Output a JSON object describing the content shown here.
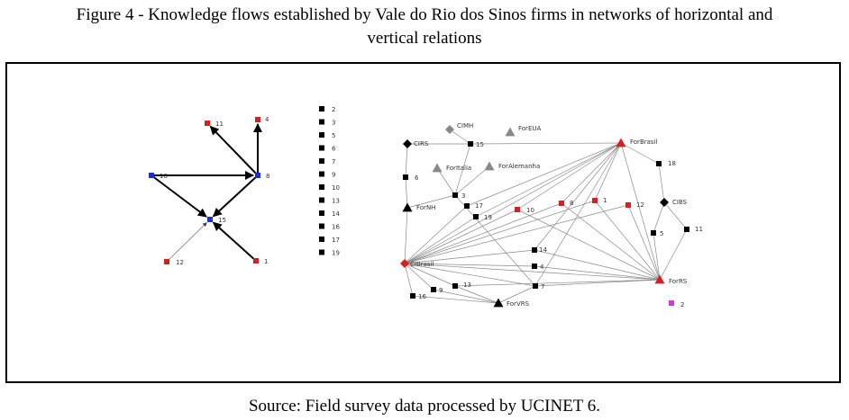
{
  "caption": {
    "line1": "Figure 4 - Knowledge flows established by Vale do Rio dos Sinos firms in networks of horizontal and",
    "line2": "vertical relations"
  },
  "source": "Source: Field survey data processed by UCINET 6.",
  "colors": {
    "red": "#d42020",
    "blue": "#1a2cd6",
    "black": "#000000",
    "gray": "#888888",
    "magenta": "#d63ad6"
  },
  "graph_left": {
    "nodes": [
      {
        "id": "11",
        "label": "11",
        "color": "red"
      },
      {
        "id": "4",
        "label": "4",
        "color": "red"
      },
      {
        "id": "8",
        "label": "8",
        "color": "blue"
      },
      {
        "id": "18",
        "label": "18",
        "color": "blue"
      },
      {
        "id": "15",
        "label": "15",
        "color": "blue"
      },
      {
        "id": "12",
        "label": "12",
        "color": "red"
      },
      {
        "id": "1",
        "label": "1",
        "color": "red"
      }
    ],
    "edges": [
      {
        "from": "8",
        "to": "11",
        "style": "bold"
      },
      {
        "from": "8",
        "to": "4",
        "style": "bold"
      },
      {
        "from": "18",
        "to": "8",
        "style": "bold"
      },
      {
        "from": "18",
        "to": "15",
        "style": "bold"
      },
      {
        "from": "8",
        "to": "15",
        "style": "bold"
      },
      {
        "from": "1",
        "to": "15",
        "style": "bold"
      },
      {
        "from": "12",
        "to": "15",
        "style": "thin"
      }
    ]
  },
  "isolates": [
    "2",
    "3",
    "5",
    "6",
    "7",
    "9",
    "10",
    "13",
    "14",
    "16",
    "17",
    "19"
  ],
  "graph_right": {
    "nodes": [
      {
        "id": "CIMH",
        "label": "CIMH",
        "color": "gray",
        "shape": "diamond"
      },
      {
        "id": "ForEUA",
        "label": "ForEUA",
        "color": "gray",
        "shape": "triangle"
      },
      {
        "id": "CIRS",
        "label": "CIRS",
        "color": "black",
        "shape": "diamond"
      },
      {
        "id": "r15",
        "label": "15",
        "color": "black",
        "shape": "square"
      },
      {
        "id": "ForBrasil",
        "label": "ForBrasil",
        "color": "red",
        "shape": "triangle"
      },
      {
        "id": "r6",
        "label": "6",
        "color": "black",
        "shape": "square"
      },
      {
        "id": "ForItalia",
        "label": "ForItalia",
        "color": "gray",
        "shape": "triangle"
      },
      {
        "id": "ForAlemanha",
        "label": "ForAlemanha",
        "color": "gray",
        "shape": "triangle"
      },
      {
        "id": "r18",
        "label": "18",
        "color": "black",
        "shape": "square"
      },
      {
        "id": "r3",
        "label": "3",
        "color": "black",
        "shape": "square"
      },
      {
        "id": "ForNH",
        "label": "ForNH",
        "color": "black",
        "shape": "triangle"
      },
      {
        "id": "r17",
        "label": "17",
        "color": "black",
        "shape": "square"
      },
      {
        "id": "r19",
        "label": "19",
        "color": "black",
        "shape": "square"
      },
      {
        "id": "r10",
        "label": "10",
        "color": "red",
        "shape": "square"
      },
      {
        "id": "r8",
        "label": "8",
        "color": "red",
        "shape": "square"
      },
      {
        "id": "r1",
        "label": "1",
        "color": "red",
        "shape": "square"
      },
      {
        "id": "r12",
        "label": "12",
        "color": "red",
        "shape": "square"
      },
      {
        "id": "CIBS",
        "label": "CIBS",
        "color": "black",
        "shape": "diamond"
      },
      {
        "id": "r5",
        "label": "5",
        "color": "black",
        "shape": "square"
      },
      {
        "id": "r11",
        "label": "11",
        "color": "black",
        "shape": "square"
      },
      {
        "id": "r14",
        "label": "14",
        "color": "black",
        "shape": "square"
      },
      {
        "id": "CIBrasil",
        "label": "CIBrasil",
        "color": "red",
        "shape": "diamond"
      },
      {
        "id": "r4",
        "label": "4",
        "color": "black",
        "shape": "square"
      },
      {
        "id": "ForRS",
        "label": "ForRS",
        "color": "red",
        "shape": "triangle"
      },
      {
        "id": "r7",
        "label": "7",
        "color": "black",
        "shape": "square"
      },
      {
        "id": "r13",
        "label": "13",
        "color": "black",
        "shape": "square"
      },
      {
        "id": "r9",
        "label": "9",
        "color": "black",
        "shape": "square"
      },
      {
        "id": "r16",
        "label": "16",
        "color": "black",
        "shape": "square"
      },
      {
        "id": "ForVRS",
        "label": "ForVRS",
        "color": "black",
        "shape": "triangle"
      },
      {
        "id": "r2",
        "label": "2",
        "color": "magenta",
        "shape": "square"
      }
    ],
    "edges": [
      [
        "CIMH",
        "r15"
      ],
      [
        "CIRS",
        "r15"
      ],
      [
        "r15",
        "ForBrasil"
      ],
      [
        "CIRS",
        "r6"
      ],
      [
        "r6",
        "ForNH"
      ],
      [
        "ForNH",
        "r3"
      ],
      [
        "r3",
        "r15"
      ],
      [
        "r3",
        "ForItalia"
      ],
      [
        "r3",
        "ForAlemanha"
      ],
      [
        "ForBrasil",
        "r18"
      ],
      [
        "r18",
        "CIBS"
      ],
      [
        "CIBS",
        "r5"
      ],
      [
        "CIBS",
        "r11"
      ],
      [
        "r11",
        "ForRS"
      ],
      [
        "r5",
        "ForRS"
      ],
      [
        "ForBrasil",
        "ForRS"
      ],
      [
        "CIBrasil",
        "ForNH"
      ],
      [
        "CIBrasil",
        "r17"
      ],
      [
        "CIBrasil",
        "r19"
      ],
      [
        "CIBrasil",
        "r10"
      ],
      [
        "CIBrasil",
        "r8"
      ],
      [
        "CIBrasil",
        "r1"
      ],
      [
        "CIBrasil",
        "r12"
      ],
      [
        "CIBrasil",
        "ForBrasil"
      ],
      [
        "CIBrasil",
        "r14"
      ],
      [
        "CIBrasil",
        "r4"
      ],
      [
        "CIBrasil",
        "r7"
      ],
      [
        "CIBrasil",
        "r13"
      ],
      [
        "CIBrasil",
        "r9"
      ],
      [
        "CIBrasil",
        "r16"
      ],
      [
        "CIBrasil",
        "ForRS"
      ],
      [
        "ForBrasil",
        "r17"
      ],
      [
        "ForBrasil",
        "r19"
      ],
      [
        "ForBrasil",
        "r10"
      ],
      [
        "ForBrasil",
        "r8"
      ],
      [
        "ForBrasil",
        "r1"
      ],
      [
        "ForBrasil",
        "r7"
      ],
      [
        "ForBrasil",
        "r14"
      ],
      [
        "ForRS",
        "r10"
      ],
      [
        "ForRS",
        "r8"
      ],
      [
        "ForRS",
        "r1"
      ],
      [
        "ForRS",
        "r12"
      ],
      [
        "ForRS",
        "r14"
      ],
      [
        "ForRS",
        "r4"
      ],
      [
        "ForRS",
        "r7"
      ],
      [
        "ForRS",
        "r13"
      ],
      [
        "ForVRS",
        "r13"
      ],
      [
        "ForVRS",
        "r9"
      ],
      [
        "ForVRS",
        "r7"
      ],
      [
        "r16",
        "ForVRS"
      ],
      [
        "r3",
        "r7"
      ]
    ]
  }
}
